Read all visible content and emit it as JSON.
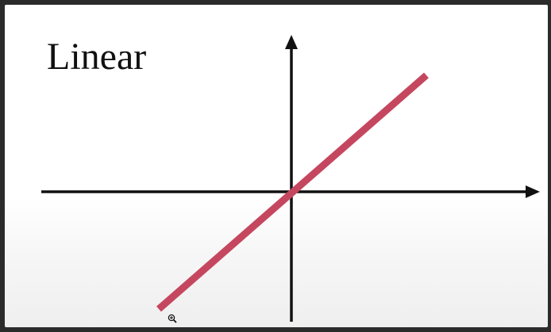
{
  "title": "Linear",
  "icons": {
    "cursor": "zoom-in-cursor-icon"
  },
  "colors": {
    "line": "#c5475f",
    "axis": "#111111",
    "background": "#ffffff",
    "frame": "#2b2b2b"
  }
}
